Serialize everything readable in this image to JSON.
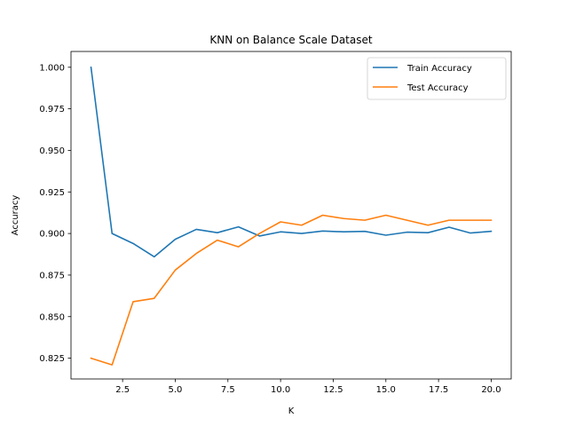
{
  "chart_data": {
    "type": "line",
    "title": "KNN on Balance Scale Dataset",
    "xlabel": "K",
    "ylabel": "Accuracy",
    "x": [
      1,
      2,
      3,
      4,
      5,
      6,
      7,
      8,
      9,
      10,
      11,
      12,
      13,
      14,
      15,
      16,
      17,
      18,
      19,
      20
    ],
    "xlim": [
      0.05,
      20.95
    ],
    "ylim": [
      0.8125,
      1.0095
    ],
    "xticks": [
      2.5,
      5.0,
      7.5,
      10.0,
      12.5,
      15.0,
      17.5,
      20.0
    ],
    "xtick_labels": [
      "2.5",
      "5.0",
      "7.5",
      "10.0",
      "12.5",
      "15.0",
      "17.5",
      "20.0"
    ],
    "yticks": [
      0.825,
      0.85,
      0.875,
      0.9,
      0.925,
      0.95,
      0.975,
      1.0
    ],
    "ytick_labels": [
      "0.825",
      "0.850",
      "0.875",
      "0.900",
      "0.925",
      "0.950",
      "0.975",
      "1.000"
    ],
    "grid": false,
    "legend_position": "top-right",
    "series": [
      {
        "name": "Train Accuracy",
        "color": "#1f77b4",
        "values": [
          1.0,
          0.9,
          0.894,
          0.886,
          0.8965,
          0.9025,
          0.9005,
          0.904,
          0.8985,
          0.901,
          0.9,
          0.9015,
          0.901,
          0.9013,
          0.899,
          0.9008,
          0.9005,
          0.9038,
          0.9003,
          0.9013
        ]
      },
      {
        "name": "Test Accuracy",
        "color": "#ff7f0e",
        "values": [
          0.825,
          0.821,
          0.859,
          0.861,
          0.878,
          0.888,
          0.896,
          0.892,
          0.9,
          0.907,
          0.905,
          0.911,
          0.909,
          0.908,
          0.911,
          0.908,
          0.905,
          0.908,
          0.908,
          0.908
        ]
      }
    ]
  }
}
